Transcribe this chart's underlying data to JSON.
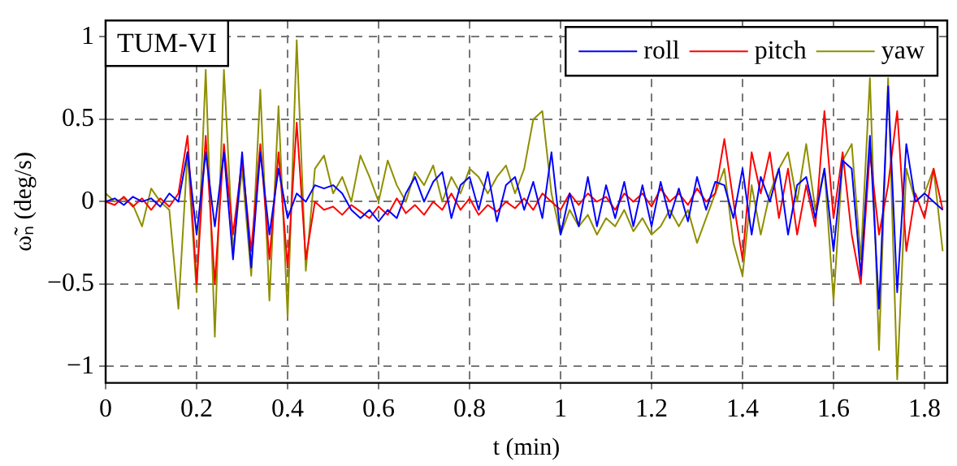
{
  "chart_data": {
    "type": "line",
    "title": "TUM-VI",
    "xlabel": "t (min)",
    "ylabel": "ω̃ₙ (deg/s)",
    "xlim": [
      0,
      1.85
    ],
    "xticks": [
      0,
      0.2,
      0.4,
      0.6,
      0.8,
      1,
      1.2,
      1.4,
      1.6,
      1.8
    ],
    "ylim": [
      -1.1,
      1.1
    ],
    "yticks": [
      -1,
      -0.5,
      0,
      0.5,
      1
    ],
    "grid": true,
    "legend": "top right",
    "marker": "none",
    "line_style": "solid",
    "x": [
      0,
      0.02,
      0.04,
      0.06,
      0.08,
      0.1,
      0.12,
      0.14,
      0.16,
      0.18,
      0.2,
      0.22,
      0.24,
      0.26,
      0.28,
      0.3,
      0.32,
      0.34,
      0.36,
      0.38,
      0.4,
      0.42,
      0.44,
      0.46,
      0.48,
      0.5,
      0.52,
      0.54,
      0.56,
      0.58,
      0.6,
      0.62,
      0.64,
      0.66,
      0.68,
      0.7,
      0.72,
      0.74,
      0.76,
      0.78,
      0.8,
      0.82,
      0.84,
      0.86,
      0.88,
      0.9,
      0.92,
      0.94,
      0.96,
      0.98,
      1,
      1.02,
      1.04,
      1.06,
      1.08,
      1.1,
      1.12,
      1.14,
      1.16,
      1.18,
      1.2,
      1.22,
      1.24,
      1.26,
      1.28,
      1.3,
      1.32,
      1.34,
      1.36,
      1.38,
      1.4,
      1.42,
      1.44,
      1.46,
      1.48,
      1.5,
      1.52,
      1.54,
      1.56,
      1.58,
      1.6,
      1.62,
      1.64,
      1.66,
      1.68,
      1.7,
      1.72,
      1.74,
      1.76,
      1.78,
      1.8,
      1.82,
      1.84
    ],
    "series": [
      {
        "name": "roll",
        "color": "#0000ff",
        "values": [
          0,
          0.02,
          -0.02,
          0.03,
          0,
          0.02,
          -0.03,
          0.05,
          0,
          0.3,
          -0.2,
          0.3,
          -0.15,
          0.3,
          -0.35,
          0.3,
          -0.4,
          0.3,
          -0.2,
          0.2,
          -0.1,
          0.05,
          0,
          0.1,
          0.08,
          0.1,
          0.05,
          -0.05,
          -0.1,
          -0.05,
          -0.12,
          -0.05,
          -0.1,
          0.05,
          0.15,
          0,
          0.12,
          0.18,
          -0.1,
          0.1,
          0.15,
          -0.05,
          0.18,
          -0.12,
          0.1,
          0.15,
          -0.05,
          0.12,
          -0.1,
          0.3,
          -0.2,
          0.05,
          -0.15,
          0.15,
          -0.15,
          0.1,
          -0.1,
          0.12,
          -0.15,
          0.1,
          -0.15,
          0.12,
          -0.1,
          0.08,
          -0.12,
          0.15,
          -0.05,
          0.12,
          0.1,
          -0.1,
          0.2,
          -0.2,
          0.15,
          0,
          0.2,
          -0.2,
          0.1,
          0.15,
          -0.1,
          0.2,
          -0.3,
          0.25,
          0.2,
          -0.45,
          0.4,
          -0.65,
          0.7,
          -0.55,
          0.35,
          0,
          0.05,
          0,
          -0.05
        ]
      },
      {
        "name": "pitch",
        "color": "#ff0000",
        "values": [
          0,
          -0.02,
          0.03,
          -0.03,
          0.02,
          -0.05,
          0.02,
          -0.03,
          0.05,
          0.4,
          -0.5,
          0.4,
          -0.5,
          0.35,
          -0.2,
          0.25,
          -0.3,
          0.35,
          -0.35,
          0.3,
          -0.4,
          0.48,
          -0.35,
          0,
          -0.05,
          -0.03,
          -0.08,
          -0.02,
          -0.06,
          -0.1,
          -0.03,
          -0.08,
          0.02,
          -0.07,
          -0.02,
          -0.08,
          0,
          -0.05,
          0.05,
          -0.05,
          0.02,
          -0.08,
          -0.02,
          -0.06,
          0,
          -0.04,
          0.02,
          -0.05,
          0.05,
          0,
          -0.05,
          0.05,
          -0.02,
          0.05,
          0,
          0.03,
          -0.05,
          0.05,
          0,
          0.05,
          -0.03,
          0.08,
          0,
          0.05,
          -0.02,
          0.08,
          0,
          0.05,
          0.38,
          0,
          -0.35,
          0.3,
          0.05,
          0.3,
          -0.1,
          0.2,
          -0.2,
          0.1,
          -0.15,
          0.55,
          -0.1,
          0.3,
          -0.2,
          -0.5,
          0.3,
          -0.2,
          0.1,
          0.55,
          -0.3,
          0.05,
          -0.1,
          0.2,
          -0.05
        ]
      },
      {
        "name": "yaw",
        "color": "#8f8f00",
        "values": [
          0.05,
          0,
          0.02,
          -0.02,
          -0.15,
          0.08,
          0,
          -0.05,
          -0.65,
          0.3,
          -0.55,
          0.8,
          -0.82,
          0.8,
          -0.3,
          0.2,
          -0.45,
          0.68,
          -0.6,
          0.58,
          -0.7,
          0.98,
          -0.42,
          0.2,
          0.28,
          0.05,
          0.15,
          0,
          0.28,
          0.15,
          0,
          0.25,
          0.1,
          0,
          0.18,
          0.1,
          0.22,
          0,
          0.15,
          0.05,
          0.2,
          0.15,
          0.05,
          0.15,
          0.22,
          0.05,
          0.2,
          0.5,
          0.55,
          0.05,
          -0.2,
          -0.05,
          -0.15,
          -0.08,
          -0.2,
          -0.1,
          -0.15,
          -0.05,
          -0.18,
          -0.1,
          -0.2,
          -0.15,
          -0.05,
          -0.15,
          -0.05,
          -0.25,
          -0.1,
          0.05,
          0.2,
          -0.25,
          -0.45,
          0.1,
          -0.2,
          0.05,
          0.2,
          0.3,
          0,
          0.35,
          -0.05,
          0.2,
          -0.6,
          0.25,
          0.35,
          -0.35,
          0.75,
          -0.9,
          0.75,
          -1.08,
          0.2,
          0,
          0.05,
          0.2,
          -0.3
        ]
      }
    ]
  }
}
